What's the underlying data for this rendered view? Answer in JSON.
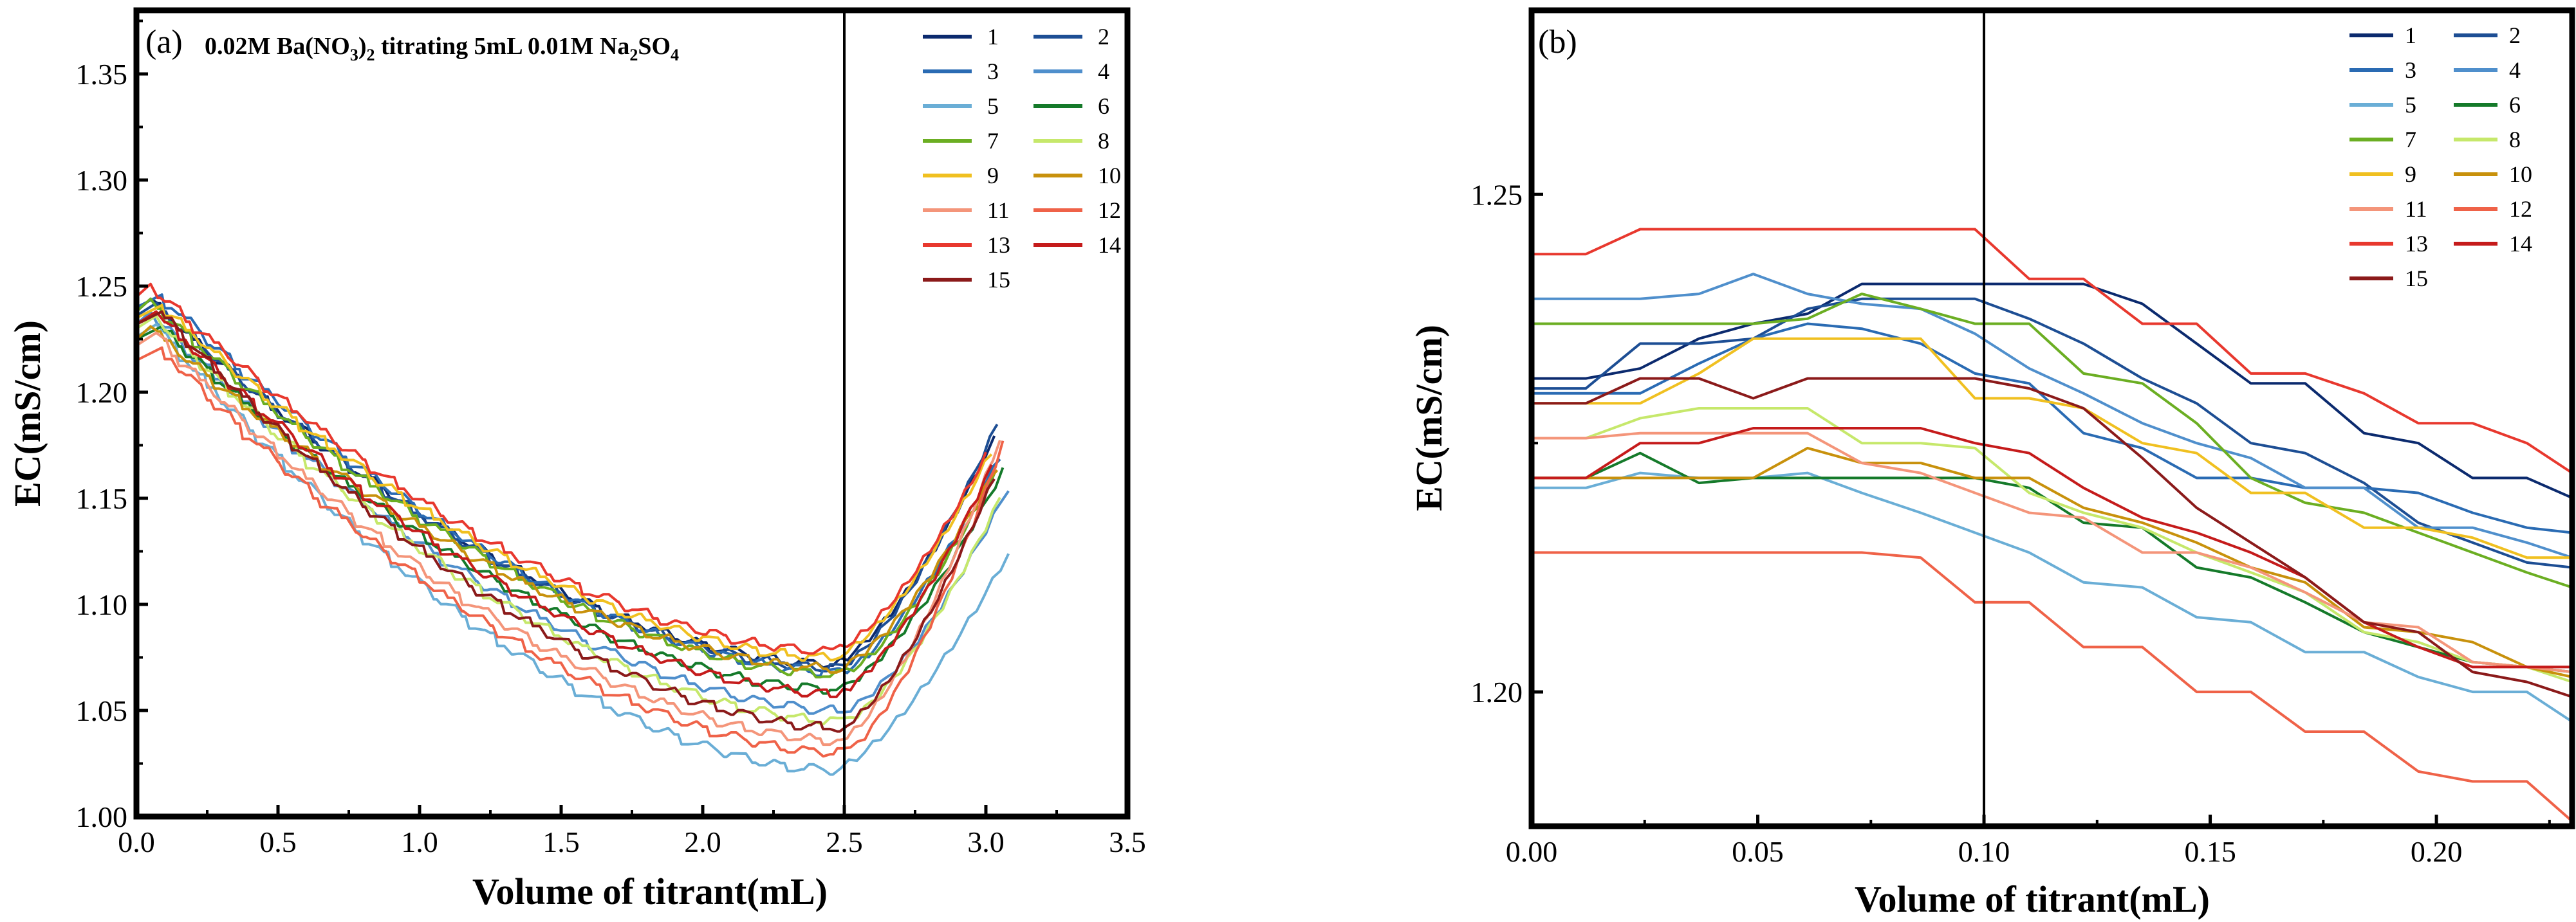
{
  "colors": [
    "#0b2a6e",
    "#1d4e94",
    "#2a6bb3",
    "#4f8fcc",
    "#6aaed6",
    "#157a2a",
    "#6bae22",
    "#c6e86b",
    "#f0c020",
    "#c8910c",
    "#f4957a",
    "#ef6248",
    "#e8382e",
    "#c51b1b",
    "#8b1a1a"
  ],
  "chart_data": [
    {
      "type": "line",
      "panel_label": "(a)",
      "title": "0.02M Ba(NO3)2 titrating 5mL 0.01M Na2SO4",
      "title_parts": {
        "t1": "0.02M Ba(NO",
        "t2": "3",
        "t3": ")",
        "t4": "2",
        "t5": " titrating 5mL 0.01M Na",
        "t6": "2",
        "t7": "SO",
        "t8": "4"
      },
      "xlabel": "Volume of titrant(mL)",
      "ylabel": "EC(mS/cm)",
      "xlim": [
        0,
        3.5
      ],
      "ylim": [
        1.0,
        1.38
      ],
      "xticks": [
        "0.0",
        "0.5",
        "1.0",
        "1.5",
        "2.0",
        "2.5",
        "3.0",
        "3.5"
      ],
      "xtick_values": [
        0,
        0.5,
        1.0,
        1.5,
        2.0,
        2.5,
        3.0,
        3.5
      ],
      "yticks": [
        "1.00",
        "1.05",
        "1.10",
        "1.15",
        "1.20",
        "1.25",
        "1.30",
        "1.35"
      ],
      "ytick_values": [
        1.0,
        1.05,
        1.1,
        1.15,
        1.2,
        1.25,
        1.3,
        1.35
      ],
      "vline": 2.5,
      "legend": "top-right",
      "series": [
        {
          "name": "1",
          "start": 1.238,
          "min": 1.072,
          "end_x": 3.03,
          "end_y": 1.178
        },
        {
          "name": "2",
          "start": 1.236,
          "min": 1.07,
          "end_x": 3.04,
          "end_y": 1.185
        },
        {
          "name": "3",
          "start": 1.24,
          "min": 1.068,
          "end_x": 3.05,
          "end_y": 1.17
        },
        {
          "name": "4",
          "start": 1.232,
          "min": 1.05,
          "end_x": 3.08,
          "end_y": 1.155
        },
        {
          "name": "5",
          "start": 1.226,
          "min": 1.022,
          "end_x": 3.08,
          "end_y": 1.124
        },
        {
          "name": "6",
          "start": 1.225,
          "min": 1.06,
          "end_x": 3.06,
          "end_y": 1.163
        },
        {
          "name": "7",
          "start": 1.238,
          "min": 1.067,
          "end_x": 3.03,
          "end_y": 1.16
        },
        {
          "name": "8",
          "start": 1.23,
          "min": 1.045,
          "end_x": 3.05,
          "end_y": 1.15
        },
        {
          "name": "9",
          "start": 1.235,
          "min": 1.075,
          "end_x": 3.02,
          "end_y": 1.172
        },
        {
          "name": "10",
          "start": 1.225,
          "min": 1.07,
          "end_x": 3.04,
          "end_y": 1.165
        },
        {
          "name": "11",
          "start": 1.222,
          "min": 1.036,
          "end_x": 3.05,
          "end_y": 1.178
        },
        {
          "name": "12",
          "start": 1.215,
          "min": 1.03,
          "end_x": 3.06,
          "end_y": 1.176
        },
        {
          "name": "13",
          "start": 1.245,
          "min": 1.078,
          "end_x": 3.0,
          "end_y": 1.17
        },
        {
          "name": "14",
          "start": 1.232,
          "min": 1.058,
          "end_x": 3.02,
          "end_y": 1.165
        },
        {
          "name": "15",
          "start": 1.232,
          "min": 1.042,
          "end_x": 3.03,
          "end_y": 1.16
        }
      ]
    },
    {
      "type": "line",
      "panel_label": "(b)",
      "title": "",
      "xlabel": "Volume of titrant(mL)",
      "ylabel": "EC(mS/cm)",
      "xlim": [
        0,
        0.23
      ],
      "ylim": [
        1.1865,
        1.2685
      ],
      "xticks": [
        "0.00",
        "0.05",
        "0.10",
        "0.15",
        "0.20"
      ],
      "xtick_values": [
        0,
        0.05,
        0.1,
        0.15,
        0.2
      ],
      "yticks": [
        "1.20",
        "1.25"
      ],
      "ytick_values": [
        1.2,
        1.25
      ],
      "vline": 0.1,
      "legend": "top-right",
      "series": [
        {
          "name": "1",
          "x": [
            0,
            0.012,
            0.024,
            0.037,
            0.049,
            0.061,
            0.073,
            0.086,
            0.098,
            0.11,
            0.122,
            0.135,
            0.147,
            0.159,
            0.171,
            0.184,
            0.196,
            0.208,
            0.22,
            0.23
          ],
          "y": [
            1.2315,
            1.2315,
            1.2325,
            1.2355,
            1.237,
            1.238,
            1.241,
            1.241,
            1.241,
            1.241,
            1.241,
            1.239,
            1.235,
            1.231,
            1.231,
            1.226,
            1.225,
            1.2215,
            1.2215,
            1.2195
          ]
        },
        {
          "name": "2",
          "x": [
            0,
            0.012,
            0.024,
            0.037,
            0.049,
            0.061,
            0.073,
            0.086,
            0.098,
            0.11,
            0.122,
            0.135,
            0.147,
            0.159,
            0.171,
            0.184,
            0.196,
            0.208,
            0.22,
            0.23
          ],
          "y": [
            1.2305,
            1.2305,
            1.235,
            1.235,
            1.2355,
            1.2385,
            1.2395,
            1.2395,
            1.2395,
            1.2375,
            1.235,
            1.2315,
            1.229,
            1.225,
            1.224,
            1.221,
            1.217,
            1.215,
            1.213,
            1.2125
          ]
        },
        {
          "name": "3",
          "x": [
            0,
            0.012,
            0.024,
            0.037,
            0.049,
            0.061,
            0.073,
            0.086,
            0.098,
            0.11,
            0.122,
            0.135,
            0.147,
            0.159,
            0.171,
            0.184,
            0.196,
            0.208,
            0.22,
            0.23
          ],
          "y": [
            1.23,
            1.23,
            1.23,
            1.233,
            1.2355,
            1.237,
            1.2365,
            1.235,
            1.232,
            1.231,
            1.226,
            1.2245,
            1.2215,
            1.2215,
            1.2205,
            1.2205,
            1.22,
            1.218,
            1.2165,
            1.216
          ]
        },
        {
          "name": "4",
          "x": [
            0,
            0.012,
            0.024,
            0.037,
            0.049,
            0.061,
            0.073,
            0.086,
            0.098,
            0.11,
            0.122,
            0.135,
            0.147,
            0.159,
            0.171,
            0.184,
            0.196,
            0.208,
            0.22,
            0.23
          ],
          "y": [
            1.2395,
            1.2395,
            1.2395,
            1.24,
            1.242,
            1.24,
            1.239,
            1.2385,
            1.236,
            1.2325,
            1.23,
            1.227,
            1.225,
            1.2235,
            1.2205,
            1.2205,
            1.2165,
            1.2165,
            1.215,
            1.2135
          ]
        },
        {
          "name": "5",
          "x": [
            0,
            0.012,
            0.024,
            0.037,
            0.049,
            0.061,
            0.073,
            0.086,
            0.098,
            0.11,
            0.122,
            0.135,
            0.147,
            0.159,
            0.171,
            0.184,
            0.196,
            0.208,
            0.22,
            0.23
          ],
          "y": [
            1.2205,
            1.2205,
            1.222,
            1.2215,
            1.2215,
            1.222,
            1.22,
            1.218,
            1.216,
            1.214,
            1.211,
            1.2105,
            1.2075,
            1.207,
            1.204,
            1.204,
            1.2015,
            1.2,
            1.2,
            1.197
          ]
        },
        {
          "name": "6",
          "x": [
            0,
            0.012,
            0.024,
            0.037,
            0.049,
            0.061,
            0.073,
            0.086,
            0.098,
            0.11,
            0.122,
            0.135,
            0.147,
            0.159,
            0.171,
            0.184,
            0.196,
            0.208,
            0.22,
            0.23
          ],
          "y": [
            1.2215,
            1.2215,
            1.224,
            1.221,
            1.2215,
            1.2215,
            1.2215,
            1.2215,
            1.2215,
            1.2205,
            1.217,
            1.2165,
            1.2125,
            1.2115,
            1.209,
            1.206,
            1.2045,
            1.203,
            1.2025,
            1.202
          ]
        },
        {
          "name": "7",
          "x": [
            0,
            0.012,
            0.024,
            0.037,
            0.049,
            0.061,
            0.073,
            0.086,
            0.098,
            0.11,
            0.122,
            0.135,
            0.147,
            0.159,
            0.171,
            0.184,
            0.196,
            0.208,
            0.22,
            0.23
          ],
          "y": [
            1.237,
            1.237,
            1.237,
            1.237,
            1.237,
            1.2375,
            1.24,
            1.2385,
            1.237,
            1.237,
            1.232,
            1.231,
            1.227,
            1.2215,
            1.219,
            1.218,
            1.216,
            1.214,
            1.212,
            1.2105
          ]
        },
        {
          "name": "8",
          "x": [
            0,
            0.012,
            0.024,
            0.037,
            0.049,
            0.061,
            0.073,
            0.086,
            0.098,
            0.11,
            0.122,
            0.135,
            0.147,
            0.159,
            0.171,
            0.184,
            0.196,
            0.208,
            0.22,
            0.23
          ],
          "y": [
            1.2255,
            1.2255,
            1.2275,
            1.2285,
            1.2285,
            1.2285,
            1.225,
            1.225,
            1.2245,
            1.22,
            1.218,
            1.2165,
            1.214,
            1.212,
            1.21,
            1.206,
            1.205,
            1.203,
            1.2025,
            1.201
          ]
        },
        {
          "name": "9",
          "x": [
            0,
            0.012,
            0.024,
            0.037,
            0.049,
            0.061,
            0.073,
            0.086,
            0.098,
            0.11,
            0.122,
            0.135,
            0.147,
            0.159,
            0.171,
            0.184,
            0.196,
            0.208,
            0.22,
            0.23
          ],
          "y": [
            1.229,
            1.229,
            1.229,
            1.232,
            1.2355,
            1.2355,
            1.2355,
            1.2355,
            1.2295,
            1.2295,
            1.2285,
            1.225,
            1.224,
            1.22,
            1.22,
            1.2165,
            1.2165,
            1.2155,
            1.2135,
            1.2135
          ]
        },
        {
          "name": "10",
          "x": [
            0,
            0.012,
            0.024,
            0.037,
            0.049,
            0.061,
            0.073,
            0.086,
            0.098,
            0.11,
            0.122,
            0.135,
            0.147,
            0.159,
            0.171,
            0.184,
            0.196,
            0.208,
            0.22,
            0.23
          ],
          "y": [
            1.2215,
            1.2215,
            1.2215,
            1.2215,
            1.2215,
            1.2245,
            1.223,
            1.223,
            1.2215,
            1.2215,
            1.2185,
            1.217,
            1.215,
            1.2125,
            1.211,
            1.2065,
            1.206,
            1.205,
            1.2025,
            1.2015
          ]
        },
        {
          "name": "11",
          "x": [
            0,
            0.012,
            0.024,
            0.037,
            0.049,
            0.061,
            0.073,
            0.086,
            0.098,
            0.11,
            0.122,
            0.135,
            0.147,
            0.159,
            0.171,
            0.184,
            0.196,
            0.208,
            0.22,
            0.23
          ],
          "y": [
            1.2255,
            1.2255,
            1.226,
            1.226,
            1.226,
            1.226,
            1.223,
            1.222,
            1.22,
            1.218,
            1.2175,
            1.214,
            1.214,
            1.2125,
            1.21,
            1.207,
            1.2065,
            1.203,
            1.2025,
            1.202
          ]
        },
        {
          "name": "12",
          "x": [
            0,
            0.012,
            0.024,
            0.037,
            0.049,
            0.061,
            0.073,
            0.086,
            0.098,
            0.11,
            0.122,
            0.135,
            0.147,
            0.159,
            0.171,
            0.184,
            0.196,
            0.208,
            0.22,
            0.23
          ],
          "y": [
            1.214,
            1.214,
            1.214,
            1.214,
            1.214,
            1.214,
            1.214,
            1.2135,
            1.209,
            1.209,
            1.2045,
            1.2045,
            1.2,
            1.2,
            1.196,
            1.196,
            1.192,
            1.191,
            1.191,
            1.187
          ]
        },
        {
          "name": "13",
          "x": [
            0,
            0.012,
            0.024,
            0.037,
            0.049,
            0.061,
            0.073,
            0.086,
            0.098,
            0.11,
            0.122,
            0.135,
            0.147,
            0.159,
            0.171,
            0.184,
            0.196,
            0.208,
            0.22,
            0.23
          ],
          "y": [
            1.244,
            1.244,
            1.2465,
            1.2465,
            1.2465,
            1.2465,
            1.2465,
            1.2465,
            1.2465,
            1.2415,
            1.2415,
            1.237,
            1.237,
            1.232,
            1.232,
            1.23,
            1.227,
            1.227,
            1.225,
            1.222
          ]
        },
        {
          "name": "14",
          "x": [
            0,
            0.012,
            0.024,
            0.037,
            0.049,
            0.061,
            0.073,
            0.086,
            0.098,
            0.11,
            0.122,
            0.135,
            0.147,
            0.159,
            0.171,
            0.184,
            0.196,
            0.208,
            0.22,
            0.23
          ],
          "y": [
            1.2215,
            1.2215,
            1.225,
            1.225,
            1.2265,
            1.2265,
            1.2265,
            1.2265,
            1.225,
            1.224,
            1.2205,
            1.2175,
            1.216,
            1.214,
            1.2115,
            1.207,
            1.2045,
            1.2025,
            1.2025,
            1.2025
          ]
        },
        {
          "name": "15",
          "x": [
            0,
            0.012,
            0.024,
            0.037,
            0.049,
            0.061,
            0.073,
            0.086,
            0.098,
            0.11,
            0.122,
            0.135,
            0.147,
            0.159,
            0.171,
            0.184,
            0.196,
            0.208,
            0.22,
            0.23
          ],
          "y": [
            1.229,
            1.229,
            1.2315,
            1.2315,
            1.2295,
            1.2315,
            1.2315,
            1.2315,
            1.2315,
            1.2305,
            1.2285,
            1.2235,
            1.2185,
            1.215,
            1.2115,
            1.207,
            1.206,
            1.202,
            1.201,
            1.1995
          ]
        }
      ]
    }
  ]
}
